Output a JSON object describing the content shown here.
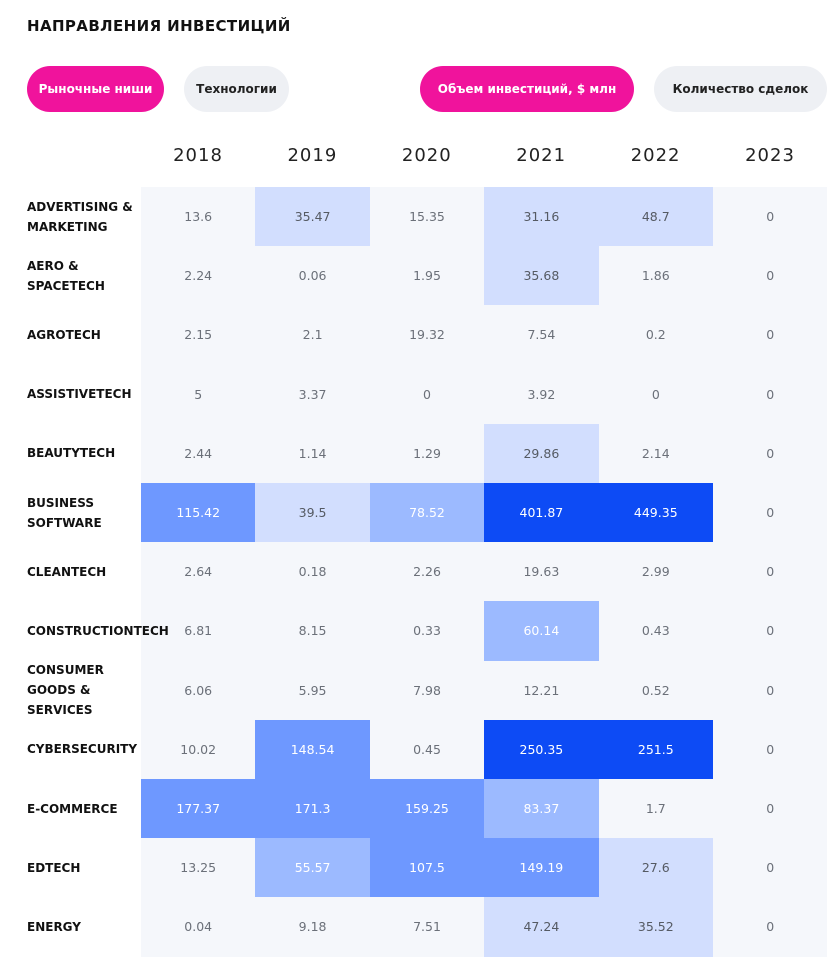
{
  "header": {
    "title": "НАПРАВЛЕНИЯ ИНВЕСТИЦИЙ"
  },
  "filters": {
    "category_tabs": [
      {
        "label": "Рыночные ниши",
        "active": true
      },
      {
        "label": "Технологии",
        "active": false
      }
    ],
    "metric_tabs": [
      {
        "label": "Объем инвестиций, $ млн",
        "active": true
      },
      {
        "label": "Количество сделок",
        "active": false
      }
    ]
  },
  "colors": {
    "accent": "#f0139c",
    "band": "#f5f7fb",
    "scale": [
      "#d2defe",
      "#9cbaff",
      "#6e98ff",
      "#0d4bf5"
    ]
  },
  "chart_data": {
    "type": "heatmap",
    "title": "НАПРАВЛЕНИЯ ИНВЕСТИЦИЙ",
    "x": [
      "2018",
      "2019",
      "2020",
      "2021",
      "2022",
      "2023"
    ],
    "rows": [
      {
        "label": "ADVERTISING &\nMARKETING",
        "values": [
          13.6,
          35.47,
          15.35,
          31.16,
          48.7,
          0
        ]
      },
      {
        "label": "AERO &\nSPACETECH",
        "values": [
          2.24,
          0.06,
          1.95,
          35.68,
          1.86,
          0
        ]
      },
      {
        "label": "AGROTECH",
        "values": [
          2.15,
          2.1,
          19.32,
          7.54,
          0.2,
          0
        ]
      },
      {
        "label": "ASSISTIVETECH",
        "values": [
          5,
          3.37,
          0,
          3.92,
          0,
          0
        ]
      },
      {
        "label": "BEAUTYTECH",
        "values": [
          2.44,
          1.14,
          1.29,
          29.86,
          2.14,
          0
        ]
      },
      {
        "label": "BUSINESS\nSOFTWARE",
        "values": [
          115.42,
          39.5,
          78.52,
          401.87,
          449.35,
          0
        ]
      },
      {
        "label": "CLEANTECH",
        "values": [
          2.64,
          0.18,
          2.26,
          19.63,
          2.99,
          0
        ]
      },
      {
        "label": "CONSTRUCTIONTECH",
        "values": [
          6.81,
          8.15,
          0.33,
          60.14,
          0.43,
          0
        ]
      },
      {
        "label": "CONSUMER\nGOODS &\nSERVICES",
        "values": [
          6.06,
          5.95,
          7.98,
          12.21,
          0.52,
          0
        ]
      },
      {
        "label": "CYBERSECURITY",
        "values": [
          10.02,
          148.54,
          0.45,
          250.35,
          251.5,
          0
        ]
      },
      {
        "label": "E-COMMERCE",
        "values": [
          177.37,
          171.3,
          159.25,
          83.37,
          1.7,
          0
        ]
      },
      {
        "label": "EDTECH",
        "values": [
          13.25,
          55.57,
          107.5,
          149.19,
          27.6,
          0
        ]
      },
      {
        "label": "ENERGY",
        "values": [
          0.04,
          9.18,
          7.51,
          47.24,
          35.52,
          0
        ]
      }
    ]
  }
}
